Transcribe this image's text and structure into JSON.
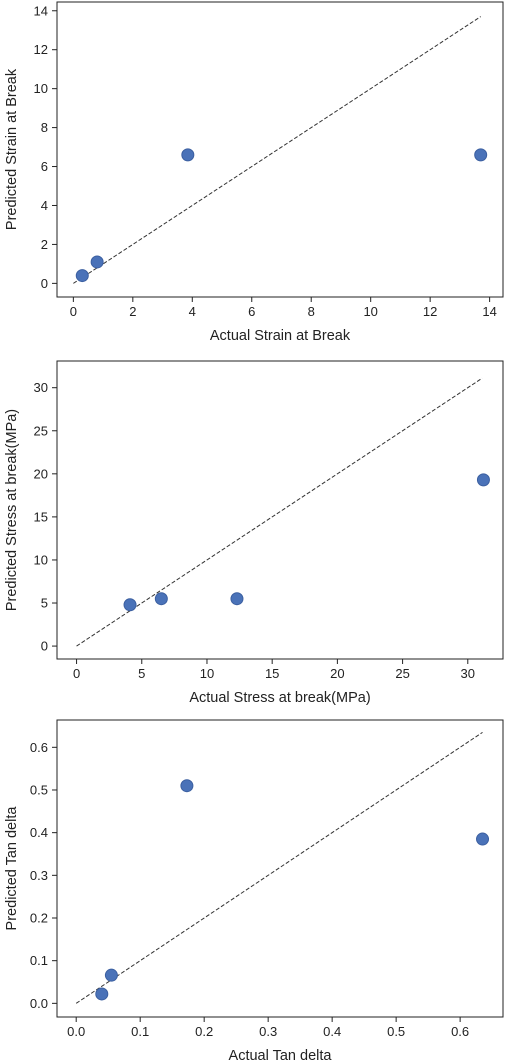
{
  "colors": {
    "point": "#4a72b8",
    "point_edge": "#3b5fa0",
    "axis": "#222222",
    "diagonal": "#333333"
  },
  "chart_data": [
    {
      "type": "scatter",
      "xlabel": "Actual Strain at Break",
      "ylabel": "Predicted Strain at Break",
      "xlim": [
        -0.55,
        14.45
      ],
      "ylim": [
        -0.7,
        14.45
      ],
      "xticks": [
        0,
        2,
        4,
        6,
        8,
        10,
        12,
        14
      ],
      "yticks": [
        0,
        2,
        4,
        6,
        8,
        10,
        12,
        14
      ],
      "x_tick_labels": [
        "0",
        "2",
        "4",
        "6",
        "8",
        "10",
        "12",
        "14"
      ],
      "y_tick_labels": [
        "0",
        "2",
        "4",
        "6",
        "8",
        "10",
        "12",
        "14"
      ],
      "reference_line": {
        "style": "dashed",
        "from": [
          0,
          0
        ],
        "to": [
          13.7,
          13.7
        ]
      },
      "grid": false,
      "points": [
        {
          "x": 0.3,
          "y": 0.4
        },
        {
          "x": 0.8,
          "y": 1.1
        },
        {
          "x": 3.85,
          "y": 6.6
        },
        {
          "x": 13.7,
          "y": 6.6
        }
      ]
    },
    {
      "type": "scatter",
      "xlabel": "Actual Stress at break(MPa)",
      "ylabel": "Predicted Stress at break(MPa)",
      "xlim": [
        -1.5,
        32.7
      ],
      "ylim": [
        -1.5,
        33.1
      ],
      "xticks": [
        0,
        5,
        10,
        15,
        20,
        25,
        30
      ],
      "yticks": [
        0,
        5,
        10,
        15,
        20,
        25,
        30
      ],
      "x_tick_labels": [
        "0",
        "5",
        "10",
        "15",
        "20",
        "25",
        "30"
      ],
      "y_tick_labels": [
        "0",
        "5",
        "10",
        "15",
        "20",
        "25",
        "30"
      ],
      "reference_line": {
        "style": "dashed",
        "from": [
          0,
          0
        ],
        "to": [
          31.1,
          31.1
        ]
      },
      "grid": false,
      "points": [
        {
          "x": 4.1,
          "y": 4.8
        },
        {
          "x": 6.5,
          "y": 5.5
        },
        {
          "x": 12.3,
          "y": 5.5
        },
        {
          "x": 31.2,
          "y": 19.3
        }
      ]
    },
    {
      "type": "scatter",
      "xlabel": "Actual Tan delta",
      "ylabel": "Predicted Tan delta",
      "xlim": [
        -0.03,
        0.667
      ],
      "ylim": [
        -0.032,
        0.664
      ],
      "xticks": [
        0.0,
        0.1,
        0.2,
        0.3,
        0.4,
        0.5,
        0.6
      ],
      "yticks": [
        0.0,
        0.1,
        0.2,
        0.3,
        0.4,
        0.5,
        0.6
      ],
      "x_tick_labels": [
        "0.0",
        "0.1",
        "0.2",
        "0.3",
        "0.4",
        "0.5",
        "0.6"
      ],
      "y_tick_labels": [
        "0.0",
        "0.1",
        "0.2",
        "0.3",
        "0.4",
        "0.5",
        "0.6"
      ],
      "reference_line": {
        "style": "dashed",
        "from": [
          0,
          0
        ],
        "to": [
          0.635,
          0.635
        ]
      },
      "grid": false,
      "points": [
        {
          "x": 0.04,
          "y": 0.022
        },
        {
          "x": 0.055,
          "y": 0.066
        },
        {
          "x": 0.173,
          "y": 0.51
        },
        {
          "x": 0.635,
          "y": 0.385
        }
      ]
    }
  ]
}
